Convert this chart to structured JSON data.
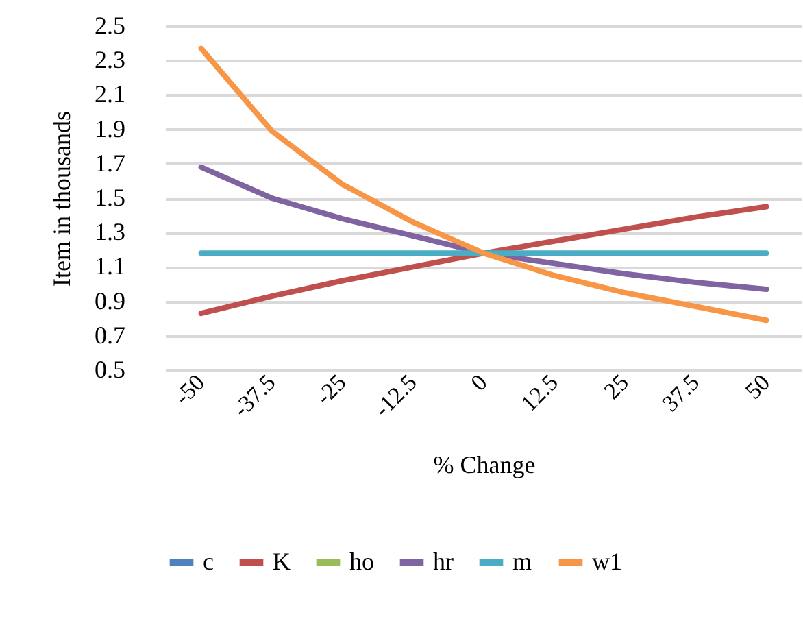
{
  "chart_data": {
    "type": "line",
    "xlabel": "% Change",
    "ylabel": "Item in thousands",
    "categories": [
      "-50",
      "-37.5",
      "-25",
      "-12.5",
      "0",
      "12.5",
      "25",
      "37.5",
      "50"
    ],
    "series": [
      {
        "name": "c",
        "color": "#4f81bd",
        "values": [
          null,
          null,
          null,
          null,
          null,
          null,
          null,
          null,
          null
        ]
      },
      {
        "name": "K",
        "color": "#c0504d",
        "values": [
          0.83,
          0.93,
          1.02,
          1.1,
          1.18,
          1.25,
          1.32,
          1.39,
          1.45
        ]
      },
      {
        "name": "ho",
        "color": "#9bbb59",
        "values": [
          null,
          null,
          null,
          null,
          null,
          null,
          null,
          null,
          null
        ]
      },
      {
        "name": "hr",
        "color": "#8064a2",
        "values": [
          1.68,
          1.5,
          1.38,
          1.28,
          1.18,
          1.12,
          1.06,
          1.01,
          0.97
        ]
      },
      {
        "name": "m",
        "color": "#4bacc6",
        "values": [
          1.18,
          1.18,
          1.18,
          1.18,
          1.18,
          1.18,
          1.18,
          1.18,
          1.18
        ]
      },
      {
        "name": "w1",
        "color": "#f79646",
        "values": [
          2.37,
          1.89,
          1.58,
          1.36,
          1.18,
          1.05,
          0.95,
          0.87,
          0.79
        ]
      }
    ],
    "ylim": [
      0.5,
      2.5
    ],
    "yticks": [
      0.5,
      0.7,
      0.9,
      1.1,
      1.3,
      1.5,
      1.7,
      1.9,
      2.1,
      2.3,
      2.5
    ],
    "grid": "y",
    "legend": "bottom",
    "marker": "none",
    "line_style": "solid"
  }
}
